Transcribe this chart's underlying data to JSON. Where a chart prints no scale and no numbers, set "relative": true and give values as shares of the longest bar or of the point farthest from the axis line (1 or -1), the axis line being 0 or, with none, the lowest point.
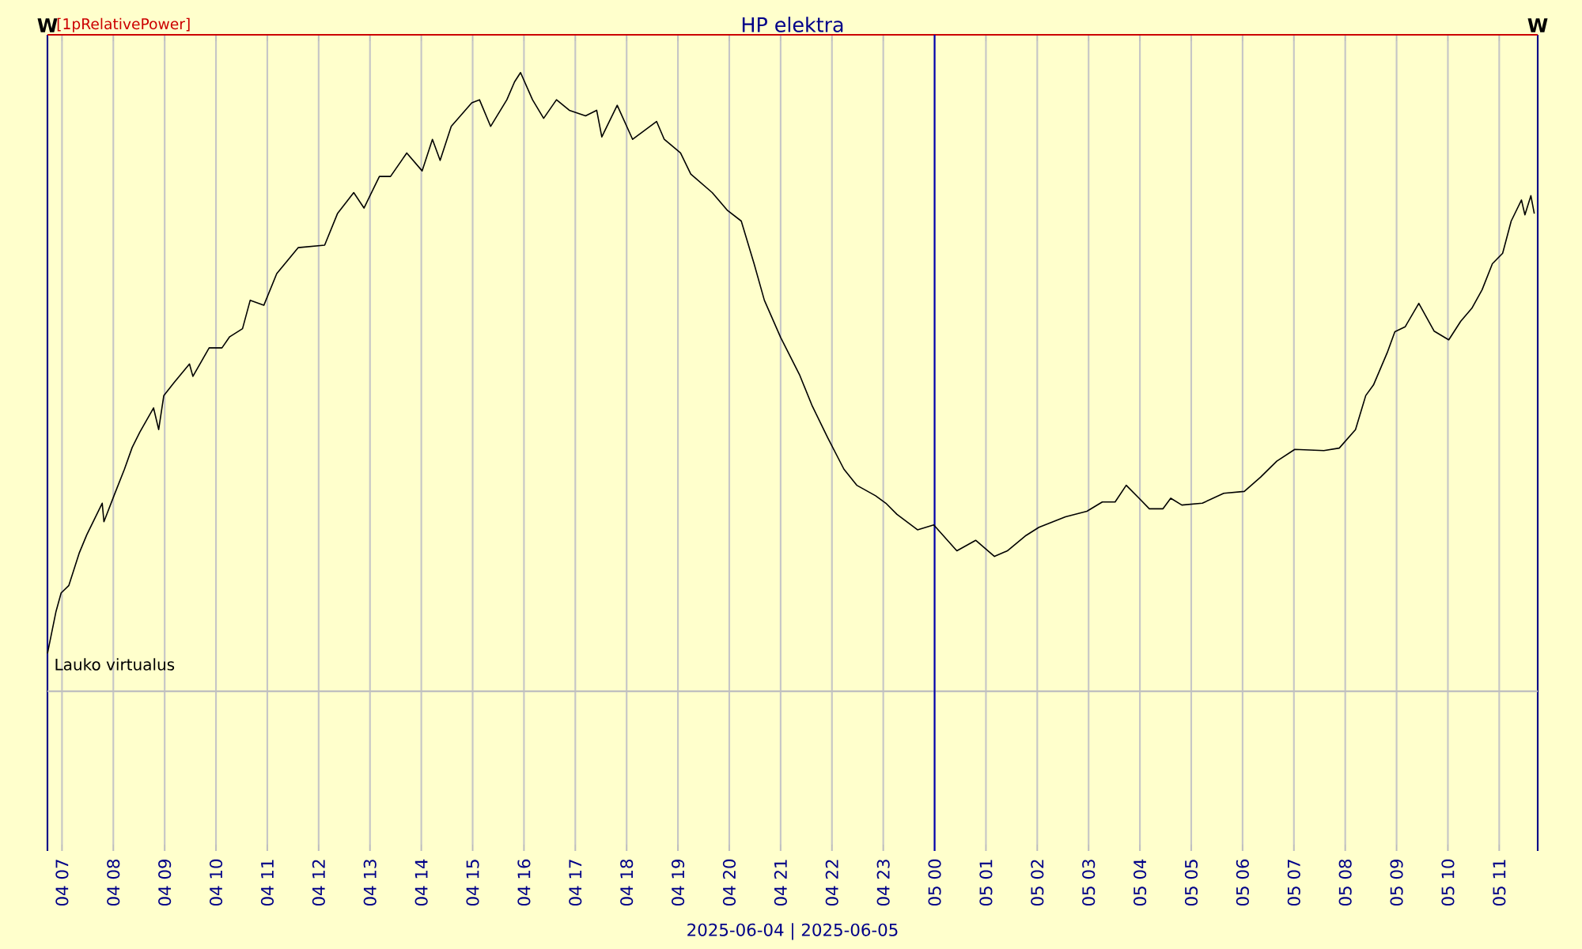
{
  "chart_data": {
    "type": "line",
    "title": "HP elektra",
    "ylabel": "W",
    "y2label": "W",
    "relative": true,
    "grid": "x",
    "xlim": [
      "2025-06-04T06:43",
      "2025-06-05T11:45"
    ],
    "xticks": [
      {
        "value": "2025-06-04T07:00",
        "label": "04 07"
      },
      {
        "value": "2025-06-04T08:00",
        "label": "04 08"
      },
      {
        "value": "2025-06-04T09:00",
        "label": "04 09"
      },
      {
        "value": "2025-06-04T10:00",
        "label": "04 10"
      },
      {
        "value": "2025-06-04T11:00",
        "label": "04 11"
      },
      {
        "value": "2025-06-04T12:00",
        "label": "04 12"
      },
      {
        "value": "2025-06-04T13:00",
        "label": "04 13"
      },
      {
        "value": "2025-06-04T14:00",
        "label": "04 14"
      },
      {
        "value": "2025-06-04T15:00",
        "label": "04 15"
      },
      {
        "value": "2025-06-04T16:00",
        "label": "04 16"
      },
      {
        "value": "2025-06-04T17:00",
        "label": "04 17"
      },
      {
        "value": "2025-06-04T18:00",
        "label": "04 18"
      },
      {
        "value": "2025-06-04T19:00",
        "label": "04 19"
      },
      {
        "value": "2025-06-04T20:00",
        "label": "04 20"
      },
      {
        "value": "2025-06-04T21:00",
        "label": "04 21"
      },
      {
        "value": "2025-06-04T22:00",
        "label": "04 22"
      },
      {
        "value": "2025-06-04T23:00",
        "label": "04 23"
      },
      {
        "value": "2025-06-05T00:00",
        "label": "05 00"
      },
      {
        "value": "2025-06-05T01:00",
        "label": "05 01"
      },
      {
        "value": "2025-06-05T02:00",
        "label": "05 02"
      },
      {
        "value": "2025-06-05T03:00",
        "label": "05 03"
      },
      {
        "value": "2025-06-05T04:00",
        "label": "05 04"
      },
      {
        "value": "2025-06-05T05:00",
        "label": "05 05"
      },
      {
        "value": "2025-06-05T06:00",
        "label": "05 06"
      },
      {
        "value": "2025-06-05T07:00",
        "label": "05 07"
      },
      {
        "value": "2025-06-05T08:00",
        "label": "05 08"
      },
      {
        "value": "2025-06-05T09:00",
        "label": "05 09"
      },
      {
        "value": "2025-06-05T10:00",
        "label": "05 10"
      },
      {
        "value": "2025-06-05T11:00",
        "label": "05 11"
      }
    ],
    "ref_lines": [
      {
        "axis": "x",
        "value": "2025-06-05T00:00",
        "color": "#0000aa"
      }
    ],
    "annotations": [
      "[1pRelativePower]",
      "2025-06-04 | 2025-06-05"
    ],
    "series": [
      {
        "name": "Lauko virtualus",
        "color": "#000000",
        "x": [
          "2025-06-04T06:43",
          "2025-06-04T06:53",
          "2025-06-04T06:59",
          "2025-06-04T07:08",
          "2025-06-04T07:20",
          "2025-06-04T07:29",
          "2025-06-04T07:47",
          "2025-06-04T07:49",
          "2025-06-04T08:01",
          "2025-06-04T08:13",
          "2025-06-04T08:22",
          "2025-06-04T08:31",
          "2025-06-04T08:47",
          "2025-06-04T08:53",
          "2025-06-04T08:59",
          "2025-06-04T09:11",
          "2025-06-04T09:29",
          "2025-06-04T09:33",
          "2025-06-04T09:52",
          "2025-06-04T10:07",
          "2025-06-04T10:16",
          "2025-06-04T10:31",
          "2025-06-04T10:40",
          "2025-06-04T10:56",
          "2025-06-04T11:11",
          "2025-06-04T11:36",
          "2025-06-04T12:07",
          "2025-06-04T12:22",
          "2025-06-04T12:41",
          "2025-06-04T12:53",
          "2025-06-04T13:11",
          "2025-06-04T13:24",
          "2025-06-04T13:43",
          "2025-06-04T14:01",
          "2025-06-04T14:13",
          "2025-06-04T14:22",
          "2025-06-04T14:35",
          "2025-06-04T14:59",
          "2025-06-04T15:08",
          "2025-06-04T15:21",
          "2025-06-04T15:40",
          "2025-06-04T15:49",
          "2025-06-04T15:56",
          "2025-06-04T16:10",
          "2025-06-04T16:23",
          "2025-06-04T16:38",
          "2025-06-04T16:53",
          "2025-06-04T17:12",
          "2025-06-04T17:25",
          "2025-06-04T17:31",
          "2025-06-04T17:49",
          "2025-06-04T18:07",
          "2025-06-04T18:35",
          "2025-06-04T18:44",
          "2025-06-04T19:03",
          "2025-06-04T19:15",
          "2025-06-04T19:40",
          "2025-06-04T19:58",
          "2025-06-04T20:14",
          "2025-06-04T20:29",
          "2025-06-04T20:41",
          "2025-06-04T21:00",
          "2025-06-04T21:22",
          "2025-06-04T21:37",
          "2025-06-04T21:55",
          "2025-06-04T22:14",
          "2025-06-04T22:29",
          "2025-06-04T22:51",
          "2025-06-04T23:03",
          "2025-06-04T23:16",
          "2025-06-04T23:40",
          "2025-06-04T23:59",
          "2025-06-05T00:26",
          "2025-06-05T00:48",
          "2025-06-05T01:10",
          "2025-06-05T01:25",
          "2025-06-05T01:47",
          "2025-06-05T02:02",
          "2025-06-05T02:33",
          "2025-06-05T02:58",
          "2025-06-05T03:16",
          "2025-06-05T03:31",
          "2025-06-05T03:44",
          "2025-06-05T03:59",
          "2025-06-05T04:11",
          "2025-06-05T04:27",
          "2025-06-05T04:36",
          "2025-06-05T04:49",
          "2025-06-05T05:13",
          "2025-06-05T05:38",
          "2025-06-05T06:02",
          "2025-06-05T06:21",
          "2025-06-05T06:40",
          "2025-06-05T07:01",
          "2025-06-05T07:35",
          "2025-06-05T07:53",
          "2025-06-05T08:12",
          "2025-06-05T08:24",
          "2025-06-05T08:33",
          "2025-06-05T08:49",
          "2025-06-05T08:58",
          "2025-06-05T09:10",
          "2025-06-05T09:26",
          "2025-06-05T09:44",
          "2025-06-05T10:01",
          "2025-06-05T10:15",
          "2025-06-05T10:28",
          "2025-06-05T10:40",
          "2025-06-05T10:52",
          "2025-06-05T11:04",
          "2025-06-05T11:14",
          "2025-06-05T11:26",
          "2025-06-05T11:30",
          "2025-06-05T11:37",
          "2025-06-05T11:41"
        ],
        "values": [
          0.061,
          0.129,
          0.159,
          0.171,
          0.223,
          0.253,
          0.304,
          0.274,
          0.317,
          0.359,
          0.394,
          0.419,
          0.458,
          0.423,
          0.478,
          0.499,
          0.529,
          0.509,
          0.555,
          0.555,
          0.573,
          0.586,
          0.632,
          0.624,
          0.675,
          0.717,
          0.721,
          0.772,
          0.806,
          0.781,
          0.832,
          0.832,
          0.87,
          0.841,
          0.892,
          0.858,
          0.913,
          0.951,
          0.956,
          0.913,
          0.956,
          0.985,
          1,
          0.956,
          0.926,
          0.956,
          0.939,
          0.93,
          0.939,
          0.896,
          0.947,
          0.892,
          0.921,
          0.892,
          0.87,
          0.836,
          0.806,
          0.777,
          0.76,
          0.691,
          0.632,
          0.572,
          0.512,
          0.461,
          0.41,
          0.359,
          0.333,
          0.316,
          0.304,
          0.286,
          0.261,
          0.269,
          0.227,
          0.244,
          0.218,
          0.227,
          0.252,
          0.265,
          0.282,
          0.291,
          0.306,
          0.306,
          0.333,
          0.312,
          0.295,
          0.295,
          0.312,
          0.301,
          0.304,
          0.32,
          0.323,
          0.346,
          0.372,
          0.391,
          0.389,
          0.393,
          0.423,
          0.478,
          0.495,
          0.547,
          0.581,
          0.589,
          0.627,
          0.582,
          0.568,
          0.598,
          0.619,
          0.649,
          0.691,
          0.708,
          0.76,
          0.794,
          0.77,
          0.801,
          0.772
        ]
      }
    ]
  }
}
